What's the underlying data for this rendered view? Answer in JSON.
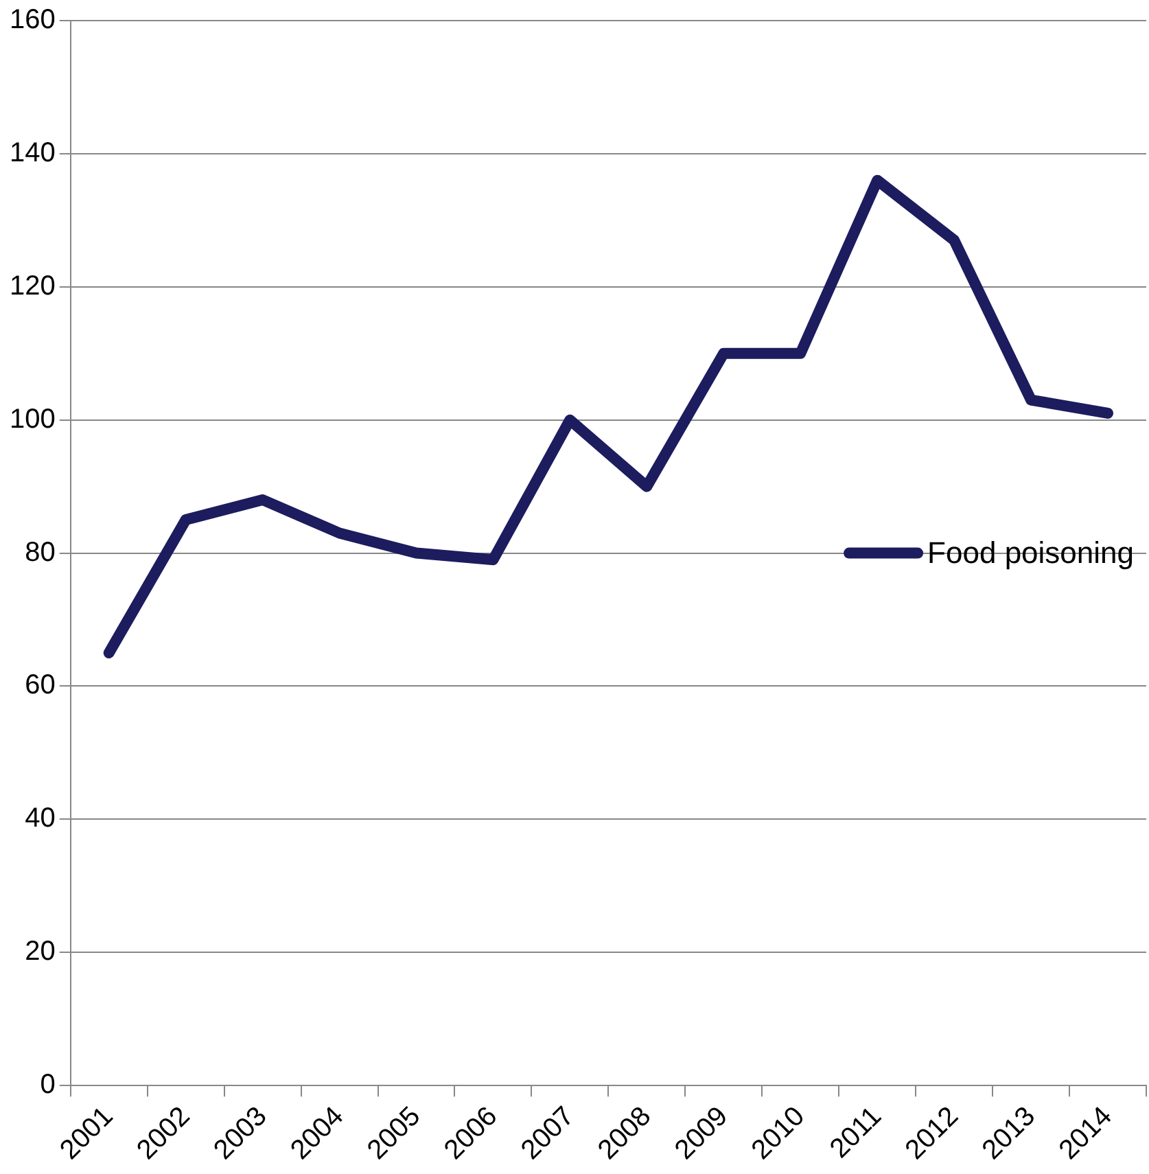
{
  "chart_data": {
    "type": "line",
    "categories": [
      "2001",
      "2002",
      "2003",
      "2004",
      "2005",
      "2006",
      "2007",
      "2008",
      "2009",
      "2010",
      "2011",
      "2012",
      "2013",
      "2014"
    ],
    "series": [
      {
        "name": "Food poisoning",
        "color": "#1c1c5e",
        "values": [
          65,
          85,
          88,
          83,
          80,
          79,
          100,
          90,
          110,
          110,
          136,
          127,
          103,
          101
        ]
      }
    ],
    "ylim": [
      0,
      160
    ],
    "yticks": [
      0,
      20,
      40,
      60,
      80,
      100,
      120,
      140,
      160
    ],
    "grid": "y",
    "legend": "right",
    "marker": "none",
    "line_style": "solid"
  }
}
